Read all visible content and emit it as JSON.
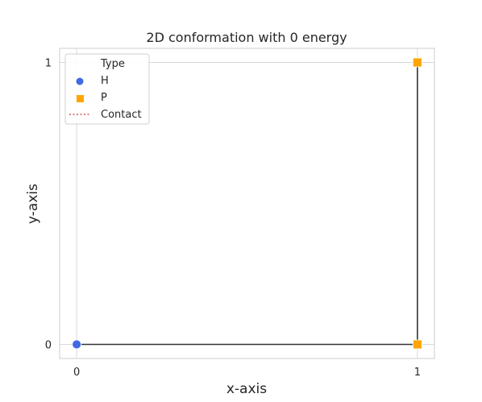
{
  "chart_data": {
    "type": "scatter",
    "title": "2D conformation with 0 energy",
    "xlabel": "x-axis",
    "ylabel": "y-axis",
    "xlim": [
      -0.05,
      1.05
    ],
    "ylim": [
      -0.05,
      1.05
    ],
    "xticks": [
      0,
      1
    ],
    "yticks": [
      0,
      1
    ],
    "grid": true,
    "chain": [
      {
        "x": 0,
        "y": 0,
        "type": "H"
      },
      {
        "x": 1,
        "y": 0,
        "type": "P"
      },
      {
        "x": 1,
        "y": 1,
        "type": "P"
      }
    ],
    "contacts": [],
    "legend": {
      "title": "Type",
      "placement": "top-left",
      "entries": [
        {
          "label": "H",
          "marker": "circle",
          "color": "#4169e1"
        },
        {
          "label": "P",
          "marker": "square",
          "color": "#ffa500"
        },
        {
          "label": "Contact",
          "marker": "dotted-line",
          "color": "#cd5c5c"
        }
      ]
    },
    "chain_color": "#333333"
  }
}
